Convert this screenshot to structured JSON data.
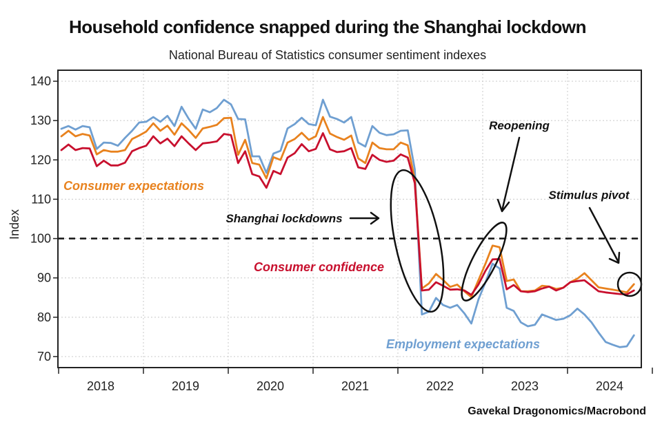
{
  "chart_data": {
    "type": "line",
    "title": "Household confidence snapped during the Shanghai lockdown",
    "subtitle": "National Bureau of Statistics consumer sentiment indexes",
    "xlabel": "",
    "ylabel": "Index",
    "source": "Gavekal Dragonomics/Macrobond",
    "ylim": [
      67,
      143
    ],
    "yticks": [
      70,
      80,
      90,
      100,
      110,
      120,
      130,
      140
    ],
    "xticks": [
      "2018",
      "2019",
      "2020",
      "2021",
      "2022",
      "2023",
      "2024"
    ],
    "x_start": "2018-01",
    "x_end": "2024-10",
    "frequency": "monthly",
    "grid": true,
    "reference_line": {
      "value": 100,
      "style": "dashed"
    },
    "series": [
      {
        "name": "Employment expectations",
        "color": "#6f9fd1",
        "values": [
          127.9,
          128.6,
          127.7,
          128.6,
          128.3,
          122.8,
          124.4,
          124.3,
          123.6,
          125.6,
          127.4,
          129.5,
          129.7,
          130.9,
          129.7,
          131.2,
          128.6,
          133.5,
          130.5,
          127.9,
          132.8,
          132.1,
          133.2,
          135.3,
          134.1,
          130.4,
          130.3,
          120.9,
          120.9,
          116.7,
          121.6,
          122.3,
          128.0,
          129.1,
          130.7,
          129.1,
          128.8,
          135.3,
          131.0,
          130.4,
          129.5,
          130.9,
          124.4,
          123.4,
          128.6,
          126.9,
          126.3,
          126.5,
          127.4,
          127.5,
          117.6,
          80.7,
          81.4,
          84.9,
          83.1,
          82.4,
          83.1,
          81.0,
          78.4,
          84.5,
          88.9,
          93.6,
          92.4,
          82.4,
          81.6,
          78.7,
          77.7,
          78.1,
          80.7,
          80.0,
          79.3,
          79.6,
          80.5,
          82.2,
          80.7,
          78.7,
          76.1,
          73.7,
          73.0,
          72.4,
          72.6,
          75.4
        ]
      },
      {
        "name": "Consumer expectations",
        "color": "#e8821e",
        "values": [
          126.0,
          127.4,
          126.0,
          126.6,
          126.2,
          121.4,
          122.5,
          122.1,
          122.1,
          122.5,
          125.3,
          126.2,
          127.2,
          129.3,
          127.4,
          128.7,
          126.4,
          129.3,
          127.6,
          125.6,
          128.0,
          128.4,
          128.9,
          130.6,
          130.7,
          121.3,
          125.1,
          119.2,
          118.8,
          115.3,
          120.7,
          120.0,
          124.4,
          125.3,
          126.9,
          125.1,
          126.0,
          130.9,
          126.7,
          125.8,
          125.1,
          126.2,
          120.4,
          119.2,
          124.4,
          123.0,
          122.7,
          122.7,
          124.4,
          123.7,
          115.0,
          87.3,
          88.6,
          91.0,
          89.5,
          87.7,
          88.3,
          86.6,
          85.1,
          89.4,
          93.6,
          98.2,
          97.8,
          89.2,
          89.6,
          86.6,
          86.6,
          86.8,
          88.0,
          87.8,
          87.2,
          87.5,
          88.9,
          89.8,
          91.2,
          89.4,
          87.6,
          87.3,
          87.0,
          86.7,
          86.3,
          88.4
        ]
      },
      {
        "name": "Consumer confidence",
        "color": "#c8102e",
        "values": [
          122.5,
          123.9,
          122.5,
          123.0,
          122.9,
          118.4,
          119.8,
          118.6,
          118.6,
          119.3,
          122.2,
          123.0,
          123.6,
          126.0,
          124.2,
          125.4,
          123.5,
          126.0,
          124.2,
          122.5,
          124.2,
          124.4,
          124.7,
          126.6,
          126.3,
          119.2,
          122.2,
          116.4,
          115.8,
          112.9,
          117.2,
          116.4,
          120.6,
          121.7,
          124.0,
          122.2,
          122.8,
          126.8,
          122.7,
          122.0,
          122.2,
          123.0,
          118.1,
          117.7,
          121.3,
          120.0,
          119.5,
          119.8,
          121.4,
          120.6,
          114.1,
          86.8,
          87.0,
          88.9,
          88.0,
          87.0,
          87.1,
          86.8,
          85.7,
          88.3,
          91.8,
          94.7,
          94.8,
          87.1,
          88.2,
          86.6,
          86.4,
          86.6,
          87.3,
          87.8,
          86.8,
          87.5,
          88.9,
          89.2,
          89.4,
          88.0,
          86.6,
          86.3,
          86.1,
          85.9,
          85.8,
          86.8
        ]
      }
    ],
    "series_labels": [
      {
        "text": "Consumer expectations",
        "color": "#e8821e"
      },
      {
        "text": "Consumer confidence",
        "color": "#c8102e"
      },
      {
        "text": "Employment expectations",
        "color": "#6f9fd1"
      }
    ],
    "annotations": [
      {
        "text": "Shanghai lockdowns",
        "points_to": "2022-04"
      },
      {
        "text": "Reopening",
        "points_to": "2023-02"
      },
      {
        "text": "Stimulus pivot",
        "points_to": "2024-10"
      }
    ]
  }
}
